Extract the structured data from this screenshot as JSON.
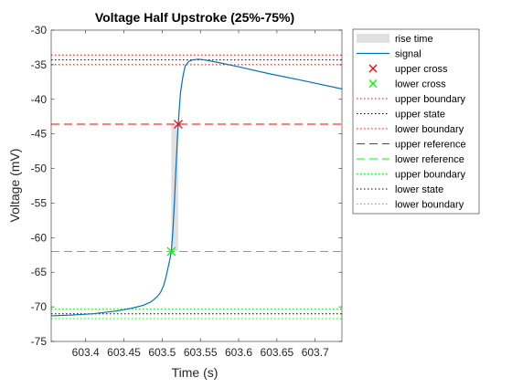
{
  "chart_data": {
    "type": "line",
    "title": "Voltage Half Upstroke (25%-75%)",
    "xlabel": "Time (s)",
    "ylabel": "Voltage (mV)",
    "xlim": [
      603.355,
      603.735
    ],
    "ylim": [
      -75,
      -30
    ],
    "xticks": [
      "603.4",
      "603.45",
      "603.5",
      "603.55",
      "603.6",
      "603.65",
      "603.7"
    ],
    "xtick_values": [
      603.4,
      603.45,
      603.5,
      603.55,
      603.6,
      603.65,
      603.7
    ],
    "yticks": [
      "-75",
      "-70",
      "-65",
      "-60",
      "-55",
      "-50",
      "-45",
      "-40",
      "-35",
      "-30"
    ],
    "ytick_values": [
      -75,
      -70,
      -65,
      -60,
      -55,
      -50,
      -45,
      -40,
      -35,
      -30
    ],
    "grid": false,
    "legend_position": "outside-top-right",
    "rise_time": {
      "x0": 603.512,
      "x1": 603.521,
      "y0": -62,
      "y1": -43.6,
      "color": "#e0e0e0"
    },
    "signal": {
      "color": "#0072BD",
      "x": [
        603.355,
        603.38,
        603.41,
        603.44,
        603.46,
        603.475,
        603.485,
        603.493,
        603.498,
        603.502,
        603.505,
        603.508,
        603.51,
        603.512,
        603.514,
        603.516,
        603.518,
        603.52,
        603.522,
        603.524,
        603.527,
        603.53,
        603.535,
        603.54,
        603.548,
        603.555,
        603.57,
        603.6,
        603.64,
        603.68,
        603.735
      ],
      "y": [
        -71.3,
        -71.2,
        -71.0,
        -70.6,
        -70.2,
        -69.8,
        -69.3,
        -68.6,
        -67.9,
        -66.9,
        -65.7,
        -64.2,
        -63.2,
        -62.0,
        -59.0,
        -55.0,
        -50.0,
        -45.5,
        -42.0,
        -39.0,
        -36.8,
        -35.2,
        -34.5,
        -34.3,
        -34.2,
        -34.3,
        -34.6,
        -35.3,
        -36.3,
        -37.2,
        -38.5
      ]
    },
    "upper_cross": {
      "x": 603.521,
      "y": -43.6,
      "color": "#ff0000"
    },
    "lower_cross": {
      "x": 603.512,
      "y": -62.0,
      "color": "#00ff00"
    },
    "upper_reference": {
      "y": -43.6,
      "color": "#ff0000"
    },
    "lower_reference": {
      "y": -62.0,
      "color": "#00ff00"
    },
    "upper_state": {
      "y": -34.3,
      "upper_boundary": -33.6,
      "lower_boundary": -35.0
    },
    "lower_state": {
      "y": -71.0,
      "upper_boundary": -70.3,
      "lower_boundary": -71.7
    },
    "legend": [
      {
        "label": "rise time",
        "kind": "patch",
        "color": "#e0e0e0"
      },
      {
        "label": "signal",
        "kind": "solid",
        "color": "#0072BD"
      },
      {
        "label": "upper cross",
        "kind": "x",
        "color": "#ff0000"
      },
      {
        "label": "lower cross",
        "kind": "x",
        "color": "#00ff00"
      },
      {
        "label": "upper boundary",
        "kind": "dotted",
        "color": "#ff0000"
      },
      {
        "label": "upper state",
        "kind": "dotted",
        "color": "#000000"
      },
      {
        "label": "lower boundary",
        "kind": "dotted",
        "color": "#ff0000"
      },
      {
        "label": "upper reference",
        "kind": "dashed",
        "color": "#ff0000"
      },
      {
        "label": "lower reference",
        "kind": "dashed",
        "color": "#00ff00"
      },
      {
        "label": "upper boundary",
        "kind": "dotted",
        "color": "#00ff00"
      },
      {
        "label": "lower state",
        "kind": "dotted",
        "color": "#000000"
      },
      {
        "label": "lower boundary",
        "kind": "dotted",
        "color": "#00ff00"
      }
    ]
  }
}
